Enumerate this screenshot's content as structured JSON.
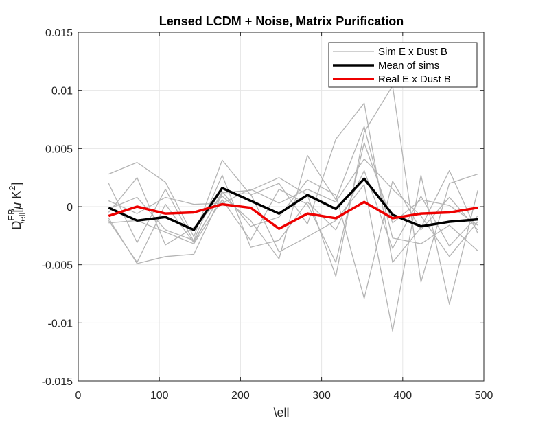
{
  "chart_data": {
    "type": "line",
    "title": "Lensed LCDM + Noise, Matrix Purification",
    "xlabel": "\\ell",
    "ylabel": {
      "main": "D",
      "sup": "EB",
      "sub": "\\ell",
      "unit_open": "[",
      "unit_mu": "μ",
      "unit_K": " K",
      "unit_sup": "2",
      "unit_close": "]"
    },
    "xlim": [
      0,
      500
    ],
    "ylim": [
      -0.015,
      0.015
    ],
    "x_ticks": [
      0,
      100,
      200,
      300,
      400,
      500
    ],
    "x_tick_labels": [
      "0",
      "100",
      "200",
      "300",
      "400",
      "500"
    ],
    "y_ticks": [
      -0.015,
      -0.01,
      -0.005,
      0,
      0.005,
      0.01,
      0.015
    ],
    "y_tick_labels": [
      "-0.015",
      "-0.01",
      "-0.005",
      "0",
      "0.005",
      "0.01",
      "0.015"
    ],
    "grid": true,
    "legend_position": "top-right",
    "legend": [
      "Sim E x Dust B",
      "Mean of sims",
      "Real E x Dust B"
    ],
    "x": [
      37.5,
      72.5,
      107.5,
      142.5,
      177.5,
      212.5,
      247.5,
      282.5,
      317.5,
      352.5,
      387.5,
      422.5,
      457.5,
      492.5
    ],
    "series": [
      {
        "name": "Sim E x Dust B",
        "role": "sim",
        "color": "#b4b4b4",
        "values": [
          0.0028,
          0.0038,
          0.0021,
          -0.0026,
          0.004,
          0.001,
          0.002,
          -0.0015,
          0.0058,
          0.0089,
          -0.0048,
          -0.0018,
          0.0031,
          -0.0023
        ]
      },
      {
        "name": "Sim E x Dust B",
        "role": "sim",
        "color": "#b4b4b4",
        "values": [
          0.002,
          -0.0031,
          0.0015,
          -0.003,
          0.0012,
          0.0014,
          0.0025,
          0.001,
          -0.006,
          0.0064,
          0.0104,
          -0.0065,
          0.002,
          0.0028
        ]
      },
      {
        "name": "Sim E x Dust B",
        "role": "sim",
        "color": "#b4b4b4",
        "values": [
          -0.001,
          -0.0049,
          -0.0043,
          -0.0041,
          0.0011,
          0.0011,
          -0.0039,
          -0.0026,
          -0.0012,
          0.0019,
          -0.0107,
          0.0027,
          -0.0084,
          0.0014
        ]
      },
      {
        "name": "Sim E x Dust B",
        "role": "sim",
        "color": "#b4b4b4",
        "values": [
          -0.0005,
          0.0025,
          -0.0033,
          -0.0018,
          0.0009,
          -0.0012,
          -0.0045,
          0.0044,
          0.0006,
          0.0069,
          -0.0027,
          -0.0032,
          -0.0016,
          -0.0038
        ]
      },
      {
        "name": "Sim E x Dust B",
        "role": "sim",
        "color": "#b4b4b4",
        "values": [
          -0.0012,
          -0.0048,
          0.0002,
          -0.0031,
          0.0013,
          -0.0017,
          -0.0009,
          0.0023,
          0.001,
          -0.0079,
          0.0022,
          -0.002,
          0.0008,
          -0.002
        ]
      },
      {
        "name": "Sim E x Dust B",
        "role": "sim",
        "color": "#b4b4b4",
        "values": [
          0.0005,
          -0.0006,
          0.0008,
          0.0002,
          0.0003,
          0.0015,
          0.0003,
          0.0015,
          0.0004,
          0.0041,
          0.0015,
          -0.0008,
          -0.0043,
          -0.0013
        ]
      },
      {
        "name": "Sim E x Dust B",
        "role": "sim",
        "color": "#b4b4b4",
        "values": [
          -0.0002,
          0.0008,
          -0.002,
          -0.0029,
          0.0027,
          -0.0035,
          -0.0029,
          0.0004,
          -0.002,
          0.0031,
          -0.0036,
          0.0009,
          -0.0034,
          -0.0008
        ]
      },
      {
        "name": "Sim E x Dust B",
        "role": "sim",
        "color": "#b4b4b4",
        "values": [
          -0.0014,
          -0.0012,
          -0.0022,
          -0.0032,
          0.0006,
          -0.0029,
          0.0015,
          0.0002,
          -0.0048,
          0.0055,
          -0.0014,
          0.0006,
          0.0001,
          -0.0016
        ]
      },
      {
        "name": "Mean of sims",
        "role": "mean",
        "color": "#000000",
        "values": [
          -0.0001,
          -0.0012,
          -0.0009,
          -0.002,
          0.0016,
          0.0005,
          -0.0006,
          0.001,
          -0.0002,
          0.0024,
          -0.0007,
          -0.0017,
          -0.0013,
          -0.0011
        ]
      },
      {
        "name": "Real E x Dust B",
        "role": "real",
        "color": "#ee0000",
        "values": [
          -0.0008,
          0.0,
          -0.0006,
          -0.0005,
          0.0002,
          -0.0001,
          -0.0019,
          -0.0006,
          -0.001,
          0.0004,
          -0.001,
          -0.0006,
          -0.0005,
          -0.0001
        ]
      }
    ]
  }
}
